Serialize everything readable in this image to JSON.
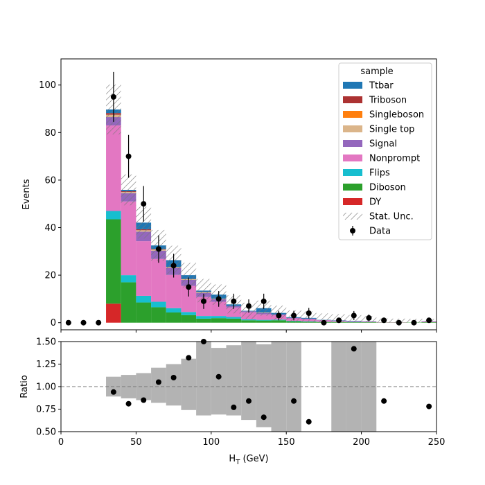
{
  "chart_data": {
    "type": "bar",
    "stacked": true,
    "bin_edges": [
      0,
      10,
      20,
      30,
      40,
      50,
      60,
      70,
      80,
      90,
      100,
      110,
      120,
      130,
      140,
      150,
      160,
      170,
      180,
      190,
      200,
      210,
      220,
      230,
      240,
      250
    ],
    "top": {
      "ylabel": "Events",
      "ylim": [
        -3,
        111
      ],
      "yticks": [
        0,
        20,
        40,
        60,
        80,
        100
      ],
      "legend": {
        "title": "sample",
        "location": "top-right",
        "entries": [
          "Ttbar",
          "Triboson",
          "Singleboson",
          "Single top",
          "Signal",
          "Nonprompt",
          "Flips",
          "Diboson",
          "DY",
          "Stat. Unc.",
          "Data"
        ]
      },
      "series": [
        {
          "name": "DY",
          "color": "#d62728",
          "values": [
            0,
            0,
            0,
            8,
            0,
            0,
            0,
            0,
            0,
            0,
            0,
            0,
            0,
            0,
            0,
            0,
            0,
            0,
            0,
            0,
            0,
            0,
            0,
            0,
            0
          ]
        },
        {
          "name": "Diboson",
          "color": "#2ca02c",
          "values": [
            0,
            0,
            0,
            35.5,
            17,
            8.5,
            6.5,
            4.3,
            3.2,
            1.7,
            1.9,
            1.7,
            1.0,
            0.9,
            1.0,
            0.6,
            0.4,
            0.3,
            0.3,
            0.2,
            0.2,
            0.1,
            0.1,
            0.1,
            0.2
          ]
        },
        {
          "name": "Flips",
          "color": "#17becf",
          "values": [
            0,
            0,
            0,
            3.5,
            3,
            2.8,
            2.3,
            1.8,
            1.3,
            1.1,
            0.9,
            0.7,
            0.4,
            0.3,
            0.3,
            0.2,
            0.2,
            0.1,
            0.1,
            0.1,
            0,
            0,
            0,
            0,
            0
          ]
        },
        {
          "name": "Nonprompt",
          "color": "#e377c2",
          "values": [
            0,
            0,
            0,
            36,
            31,
            23,
            18,
            14,
            11,
            8,
            6,
            4,
            3,
            2.3,
            1.8,
            1.0,
            0.8,
            0.6,
            0.4,
            0.3,
            0.2,
            0.1,
            0.1,
            0,
            0.3
          ]
        },
        {
          "name": "Signal",
          "color": "#9467bd",
          "values": [
            0,
            0,
            0,
            3.5,
            3.5,
            4,
            3.5,
            2.9,
            2.5,
            1.7,
            1.1,
            0.6,
            0.4,
            0.6,
            0.4,
            0.2,
            0.3,
            0.1,
            0.1,
            0,
            0.1,
            0,
            0,
            0,
            0
          ]
        },
        {
          "name": "Single top",
          "color": "#dbb58a",
          "values": [
            0,
            0,
            0,
            1,
            0.5,
            0.6,
            0.5,
            0.3,
            0.3,
            0.3,
            0.2,
            0,
            0,
            0.2,
            0,
            0,
            0,
            0,
            0,
            0,
            0,
            0,
            0,
            0,
            0
          ]
        },
        {
          "name": "Singleboson",
          "color": "#ff7f0e",
          "values": [
            0,
            0,
            0,
            0,
            0,
            0,
            0,
            0,
            0,
            0,
            0,
            0,
            0,
            0,
            0,
            0,
            0,
            0,
            0,
            0,
            0,
            0,
            0,
            0,
            0
          ]
        },
        {
          "name": "Triboson",
          "color": "#ac3232",
          "values": [
            0,
            0,
            0,
            0.7,
            0.3,
            0.4,
            0.2,
            0.1,
            0.1,
            0.1,
            0,
            0,
            0,
            0,
            0,
            0,
            0,
            0,
            0,
            0,
            0,
            0,
            0,
            0,
            0
          ]
        },
        {
          "name": "Ttbar",
          "color": "#1f77b4",
          "values": [
            0,
            0,
            0,
            1.5,
            0.6,
            2.8,
            1.5,
            2.9,
            1.6,
            0.6,
            1.7,
            0.7,
            0.2,
            1.8,
            0.6,
            0.3,
            0.3,
            0.1,
            0.1,
            0.2,
            0.1,
            0,
            0,
            0,
            0.1
          ]
        }
      ],
      "stat_unc": [
        0,
        0,
        0,
        10.5,
        6.5,
        6.7,
        6.5,
        6.1,
        5.2,
        4.9,
        4.3,
        3.8,
        3.4,
        3.2,
        3.1,
        2.9,
        2.8,
        2.7,
        2.6,
        2.4,
        2.2,
        1.6,
        1.5,
        1.5,
        1.0
      ],
      "data_points": {
        "x": [
          5,
          15,
          25,
          35,
          45,
          55,
          65,
          75,
          85,
          95,
          105,
          115,
          125,
          135,
          145,
          155,
          165,
          175,
          185,
          195,
          205,
          215,
          225,
          235,
          245
        ],
        "y": [
          0,
          0,
          0,
          95,
          70,
          50,
          31,
          24,
          15,
          9,
          10,
          9,
          7,
          9,
          3,
          3,
          4,
          0,
          1,
          3,
          2,
          1,
          0,
          0,
          1
        ],
        "err": [
          0,
          0,
          0,
          10.5,
          9,
          7.5,
          5.8,
          5,
          4,
          3.2,
          3.3,
          3.2,
          2.8,
          3.2,
          2,
          2,
          2.2,
          0,
          1,
          1.9,
          1.5,
          1,
          0,
          0,
          1
        ]
      }
    },
    "bottom": {
      "ylabel": "Ratio",
      "xlabel_main": "H",
      "xlabel_sub": "T",
      "xlabel_unit": " (GeV)",
      "ylim": [
        0.5,
        1.5
      ],
      "yticks": [
        0.5,
        0.75,
        1.0,
        1.25,
        1.5
      ],
      "ytick_labels": [
        "0.50",
        "0.75",
        "1.00",
        "1.25",
        "1.50"
      ],
      "xlim": [
        0,
        250
      ],
      "xticks": [
        0,
        50,
        100,
        150,
        200,
        250
      ],
      "reference_line": 1.0,
      "unc_band_edges": [
        30,
        40,
        50,
        60,
        70,
        80,
        90,
        100,
        110,
        120,
        130,
        140,
        150,
        160,
        170,
        180,
        190,
        200,
        210
      ],
      "unc_band_low": [
        0.89,
        0.87,
        0.85,
        0.82,
        0.79,
        0.74,
        0.68,
        0.69,
        0.68,
        0.63,
        0.55,
        0.4,
        0.4,
        null,
        null,
        0.45,
        0.45,
        0.45
      ],
      "unc_band_high": [
        1.11,
        1.13,
        1.15,
        1.21,
        1.25,
        1.31,
        1.5,
        1.43,
        1.46,
        1.5,
        1.47,
        1.5,
        1.5,
        null,
        null,
        1.55,
        1.55,
        1.55
      ],
      "points": {
        "x": [
          35,
          45,
          55,
          65,
          75,
          85,
          95,
          105,
          115,
          125,
          135,
          155,
          165,
          195,
          215,
          245
        ],
        "y": [
          0.94,
          0.81,
          0.85,
          1.05,
          1.1,
          1.32,
          1.5,
          1.11,
          0.77,
          0.84,
          0.66,
          0.84,
          0.61,
          1.42,
          0.84,
          0.78
        ]
      }
    }
  }
}
